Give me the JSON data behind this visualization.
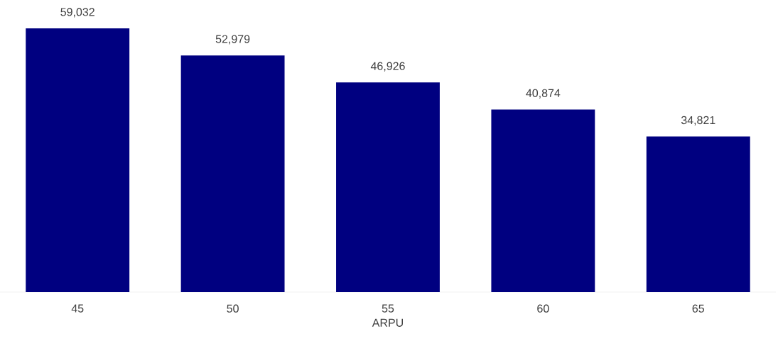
{
  "chart_data": {
    "type": "bar",
    "xlabel": "ARPU",
    "categories": [
      "45",
      "50",
      "55",
      "60",
      "65"
    ],
    "values": [
      59032,
      52979,
      46926,
      40874,
      34821
    ],
    "value_labels": [
      "59,032",
      "52,979",
      "46,926",
      "40,874",
      "34,821"
    ],
    "color": "#000080"
  }
}
